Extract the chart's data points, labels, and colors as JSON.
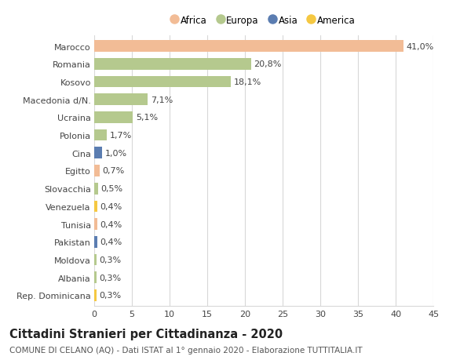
{
  "countries": [
    "Marocco",
    "Romania",
    "Kosovo",
    "Macedonia d/N.",
    "Ucraina",
    "Polonia",
    "Cina",
    "Egitto",
    "Slovacchia",
    "Venezuela",
    "Tunisia",
    "Pakistan",
    "Moldova",
    "Albania",
    "Rep. Dominicana"
  ],
  "values": [
    41.0,
    20.8,
    18.1,
    7.1,
    5.1,
    1.7,
    1.0,
    0.7,
    0.5,
    0.4,
    0.4,
    0.4,
    0.3,
    0.3,
    0.3
  ],
  "labels": [
    "41,0%",
    "20,8%",
    "18,1%",
    "7,1%",
    "5,1%",
    "1,7%",
    "1,0%",
    "0,7%",
    "0,5%",
    "0,4%",
    "0,4%",
    "0,4%",
    "0,3%",
    "0,3%",
    "0,3%"
  ],
  "continents": [
    "Africa",
    "Europa",
    "Europa",
    "Europa",
    "Europa",
    "Europa",
    "Asia",
    "Africa",
    "Europa",
    "America",
    "Africa",
    "Asia",
    "Europa",
    "Europa",
    "America"
  ],
  "continent_colors": {
    "Africa": "#F2BC96",
    "Europa": "#B5C98E",
    "Asia": "#5B7DB1",
    "America": "#F5C842"
  },
  "legend_order": [
    "Africa",
    "Europa",
    "Asia",
    "America"
  ],
  "xlim": [
    0,
    45
  ],
  "xticks": [
    0,
    5,
    10,
    15,
    20,
    25,
    30,
    35,
    40,
    45
  ],
  "title": "Cittadini Stranieri per Cittadinanza - 2020",
  "subtitle": "COMUNE DI CELANO (AQ) - Dati ISTAT al 1° gennaio 2020 - Elaborazione TUTTITALIA.IT",
  "background_color": "#ffffff",
  "grid_color": "#d8d8d8",
  "bar_height": 0.65,
  "label_fontsize": 8.0,
  "title_fontsize": 10.5,
  "subtitle_fontsize": 7.5,
  "ytick_fontsize": 8.0,
  "xtick_fontsize": 8.0,
  "legend_fontsize": 8.5
}
